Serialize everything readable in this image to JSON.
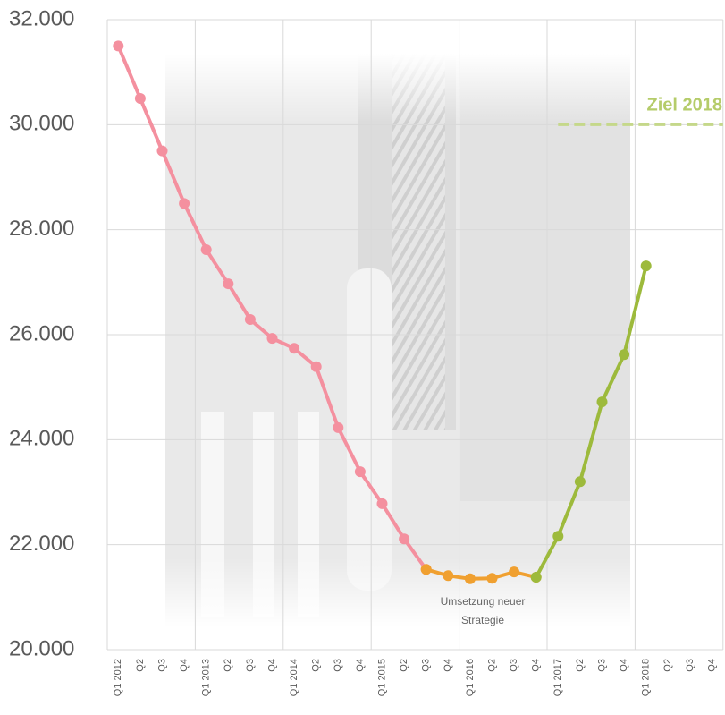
{
  "chart_data": {
    "type": "line",
    "categories": [
      "Q1 2012",
      "Q2",
      "Q3",
      "Q4",
      "Q1 2013",
      "Q2",
      "Q3",
      "Q4",
      "Q1 2014",
      "Q2",
      "Q3",
      "Q4",
      "Q1 2015",
      "Q2",
      "Q3",
      "Q4",
      "Q1 2016",
      "Q2",
      "Q3",
      "Q4",
      "Q1 2017",
      "Q2",
      "Q3",
      "Q4",
      "Q1 2018",
      "Q2",
      "Q3",
      "Q4"
    ],
    "series": [
      {
        "color": "#f4909f",
        "values": [
          31500,
          30500,
          29500,
          28500,
          27620,
          26970,
          26290,
          25930,
          25740,
          25390,
          24230,
          23390,
          22780,
          22110,
          21530,
          null,
          null,
          null,
          null,
          null,
          null,
          null,
          null,
          null,
          null,
          null,
          null,
          null
        ]
      },
      {
        "color": "#f0a030",
        "values": [
          null,
          null,
          null,
          null,
          null,
          null,
          null,
          null,
          null,
          null,
          null,
          null,
          null,
          null,
          21530,
          21410,
          21350,
          21360,
          21480,
          21380,
          null,
          null,
          null,
          null,
          null,
          null,
          null,
          null
        ]
      },
      {
        "color": "#9dba3c",
        "values": [
          null,
          null,
          null,
          null,
          null,
          null,
          null,
          null,
          null,
          null,
          null,
          null,
          null,
          null,
          null,
          null,
          null,
          null,
          null,
          21380,
          22160,
          23200,
          24720,
          25620,
          27310,
          null,
          null,
          null
        ]
      }
    ],
    "ylim": [
      20000,
      32000
    ],
    "yticks": [
      {
        "value": 20000,
        "label": "20.000"
      },
      {
        "value": 22000,
        "label": "22.000"
      },
      {
        "value": 24000,
        "label": "24.000"
      },
      {
        "value": 26000,
        "label": "26.000"
      },
      {
        "value": 28000,
        "label": "28.000"
      },
      {
        "value": 30000,
        "label": "30.000"
      },
      {
        "value": 32000,
        "label": "32.000"
      }
    ],
    "grid": true,
    "target": {
      "label": "Ziel 2018",
      "value": 30000,
      "color": "#c5d88a"
    },
    "annotation": "Umsetzung neuer Strategie"
  }
}
